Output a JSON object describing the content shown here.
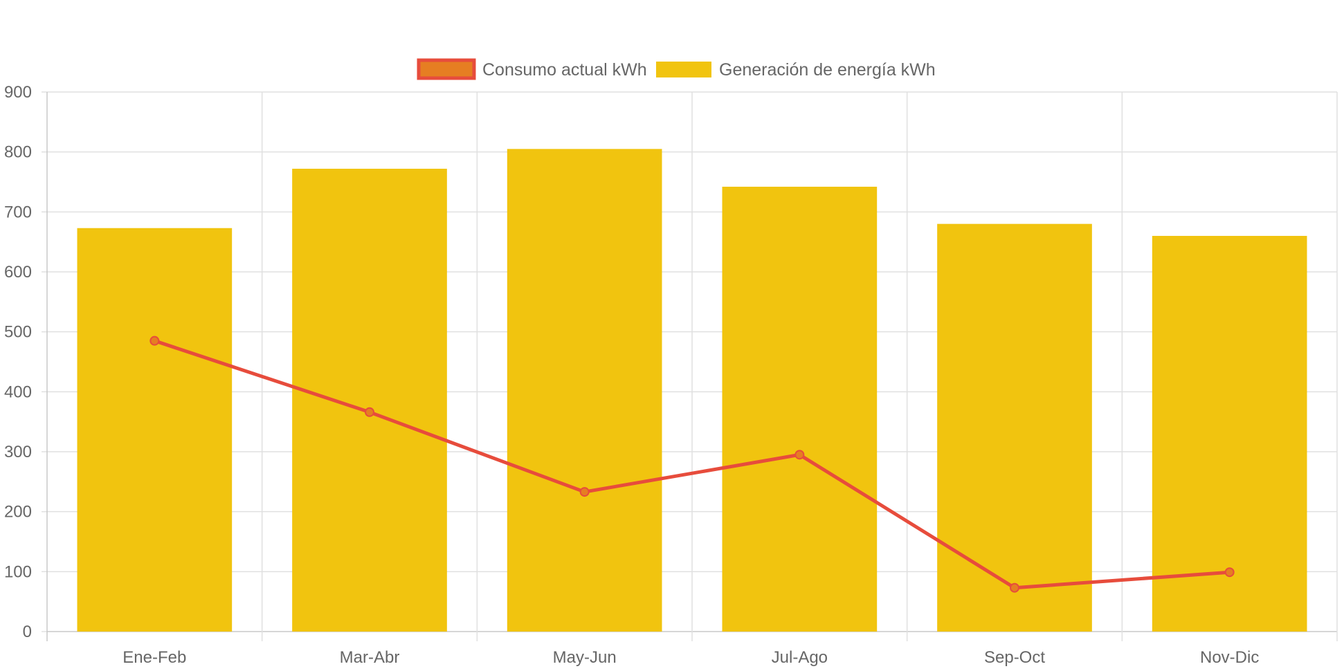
{
  "chart_data": {
    "type": "bar",
    "categories": [
      "Ene-Feb",
      "Mar-Abr",
      "May-Jun",
      "Jul-Ago",
      "Sep-Oct",
      "Nov-Dic"
    ],
    "series": [
      {
        "name": "Consumo actual kWh",
        "type": "line",
        "values": [
          485,
          366,
          233,
          295,
          73,
          99
        ],
        "color": "#e74c3c",
        "point_fill": "#e67e22"
      },
      {
        "name": "Generación de energía kWh",
        "type": "bar",
        "values": [
          673,
          772,
          805,
          742,
          680,
          660
        ],
        "color": "#f1c40f"
      }
    ],
    "ylim": [
      0,
      900
    ],
    "yticks": [
      0,
      100,
      200,
      300,
      400,
      500,
      600,
      700,
      800,
      900
    ],
    "grid": true,
    "legend_position": "top-center"
  }
}
